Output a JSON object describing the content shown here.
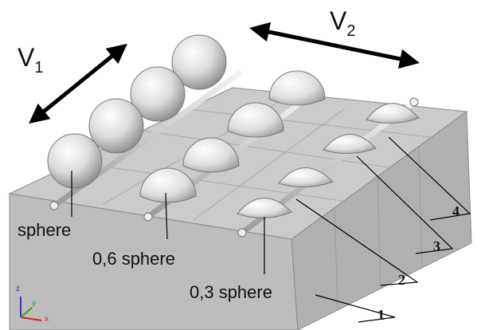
{
  "velocity_labels": {
    "v1": "V",
    "v1_sub": "1",
    "v2": "V",
    "v2_sub": "2"
  },
  "callouts": {
    "sphere": "sphere",
    "sphere_06": "0,6 sphere",
    "sphere_03": "0,3 sphere"
  },
  "part_numbers": {
    "n1": "1",
    "n2": "2",
    "n3": "3",
    "n4": "4"
  },
  "axes": {
    "z": "z",
    "y": "y",
    "x": "x"
  },
  "colors": {
    "block_top": "#c9c9c9",
    "block_front": "#bdbdbd",
    "block_side": "#aeaeae",
    "sphere_light": "#ffffff",
    "sphere_dark": "#9a9a9a",
    "arrow": "#000000",
    "axis_x": "#d22",
    "axis_y": "#2a2",
    "axis_z": "#33c"
  }
}
